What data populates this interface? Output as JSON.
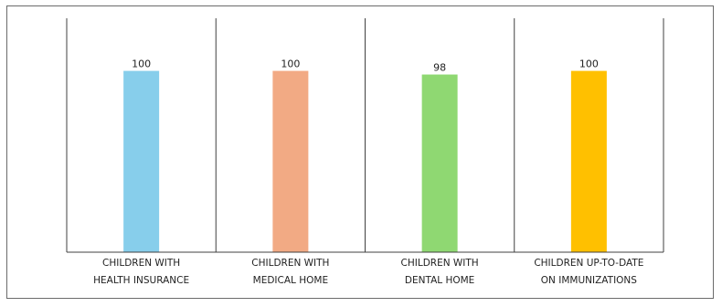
{
  "chart_data": {
    "type": "bar",
    "title": "",
    "xlabel": "",
    "ylabel": "",
    "ylim": [
      0,
      126
    ],
    "grid": false,
    "legend": "none",
    "categories": [
      [
        "CHILDREN WITH",
        "HEALTH INSURANCE"
      ],
      [
        "CHILDREN WITH",
        "MEDICAL HOME"
      ],
      [
        "CHILDREN WITH",
        "DENTAL HOME"
      ],
      [
        "CHILDREN UP-TO-DATE",
        "ON IMMUNIZATIONS"
      ]
    ],
    "values": [
      100,
      100,
      98,
      100
    ],
    "colors": [
      "#87ceeb",
      "#f2aa84",
      "#8fd872",
      "#ffc000"
    ],
    "separator_color": "#404040",
    "baseline_color": "#404040"
  }
}
